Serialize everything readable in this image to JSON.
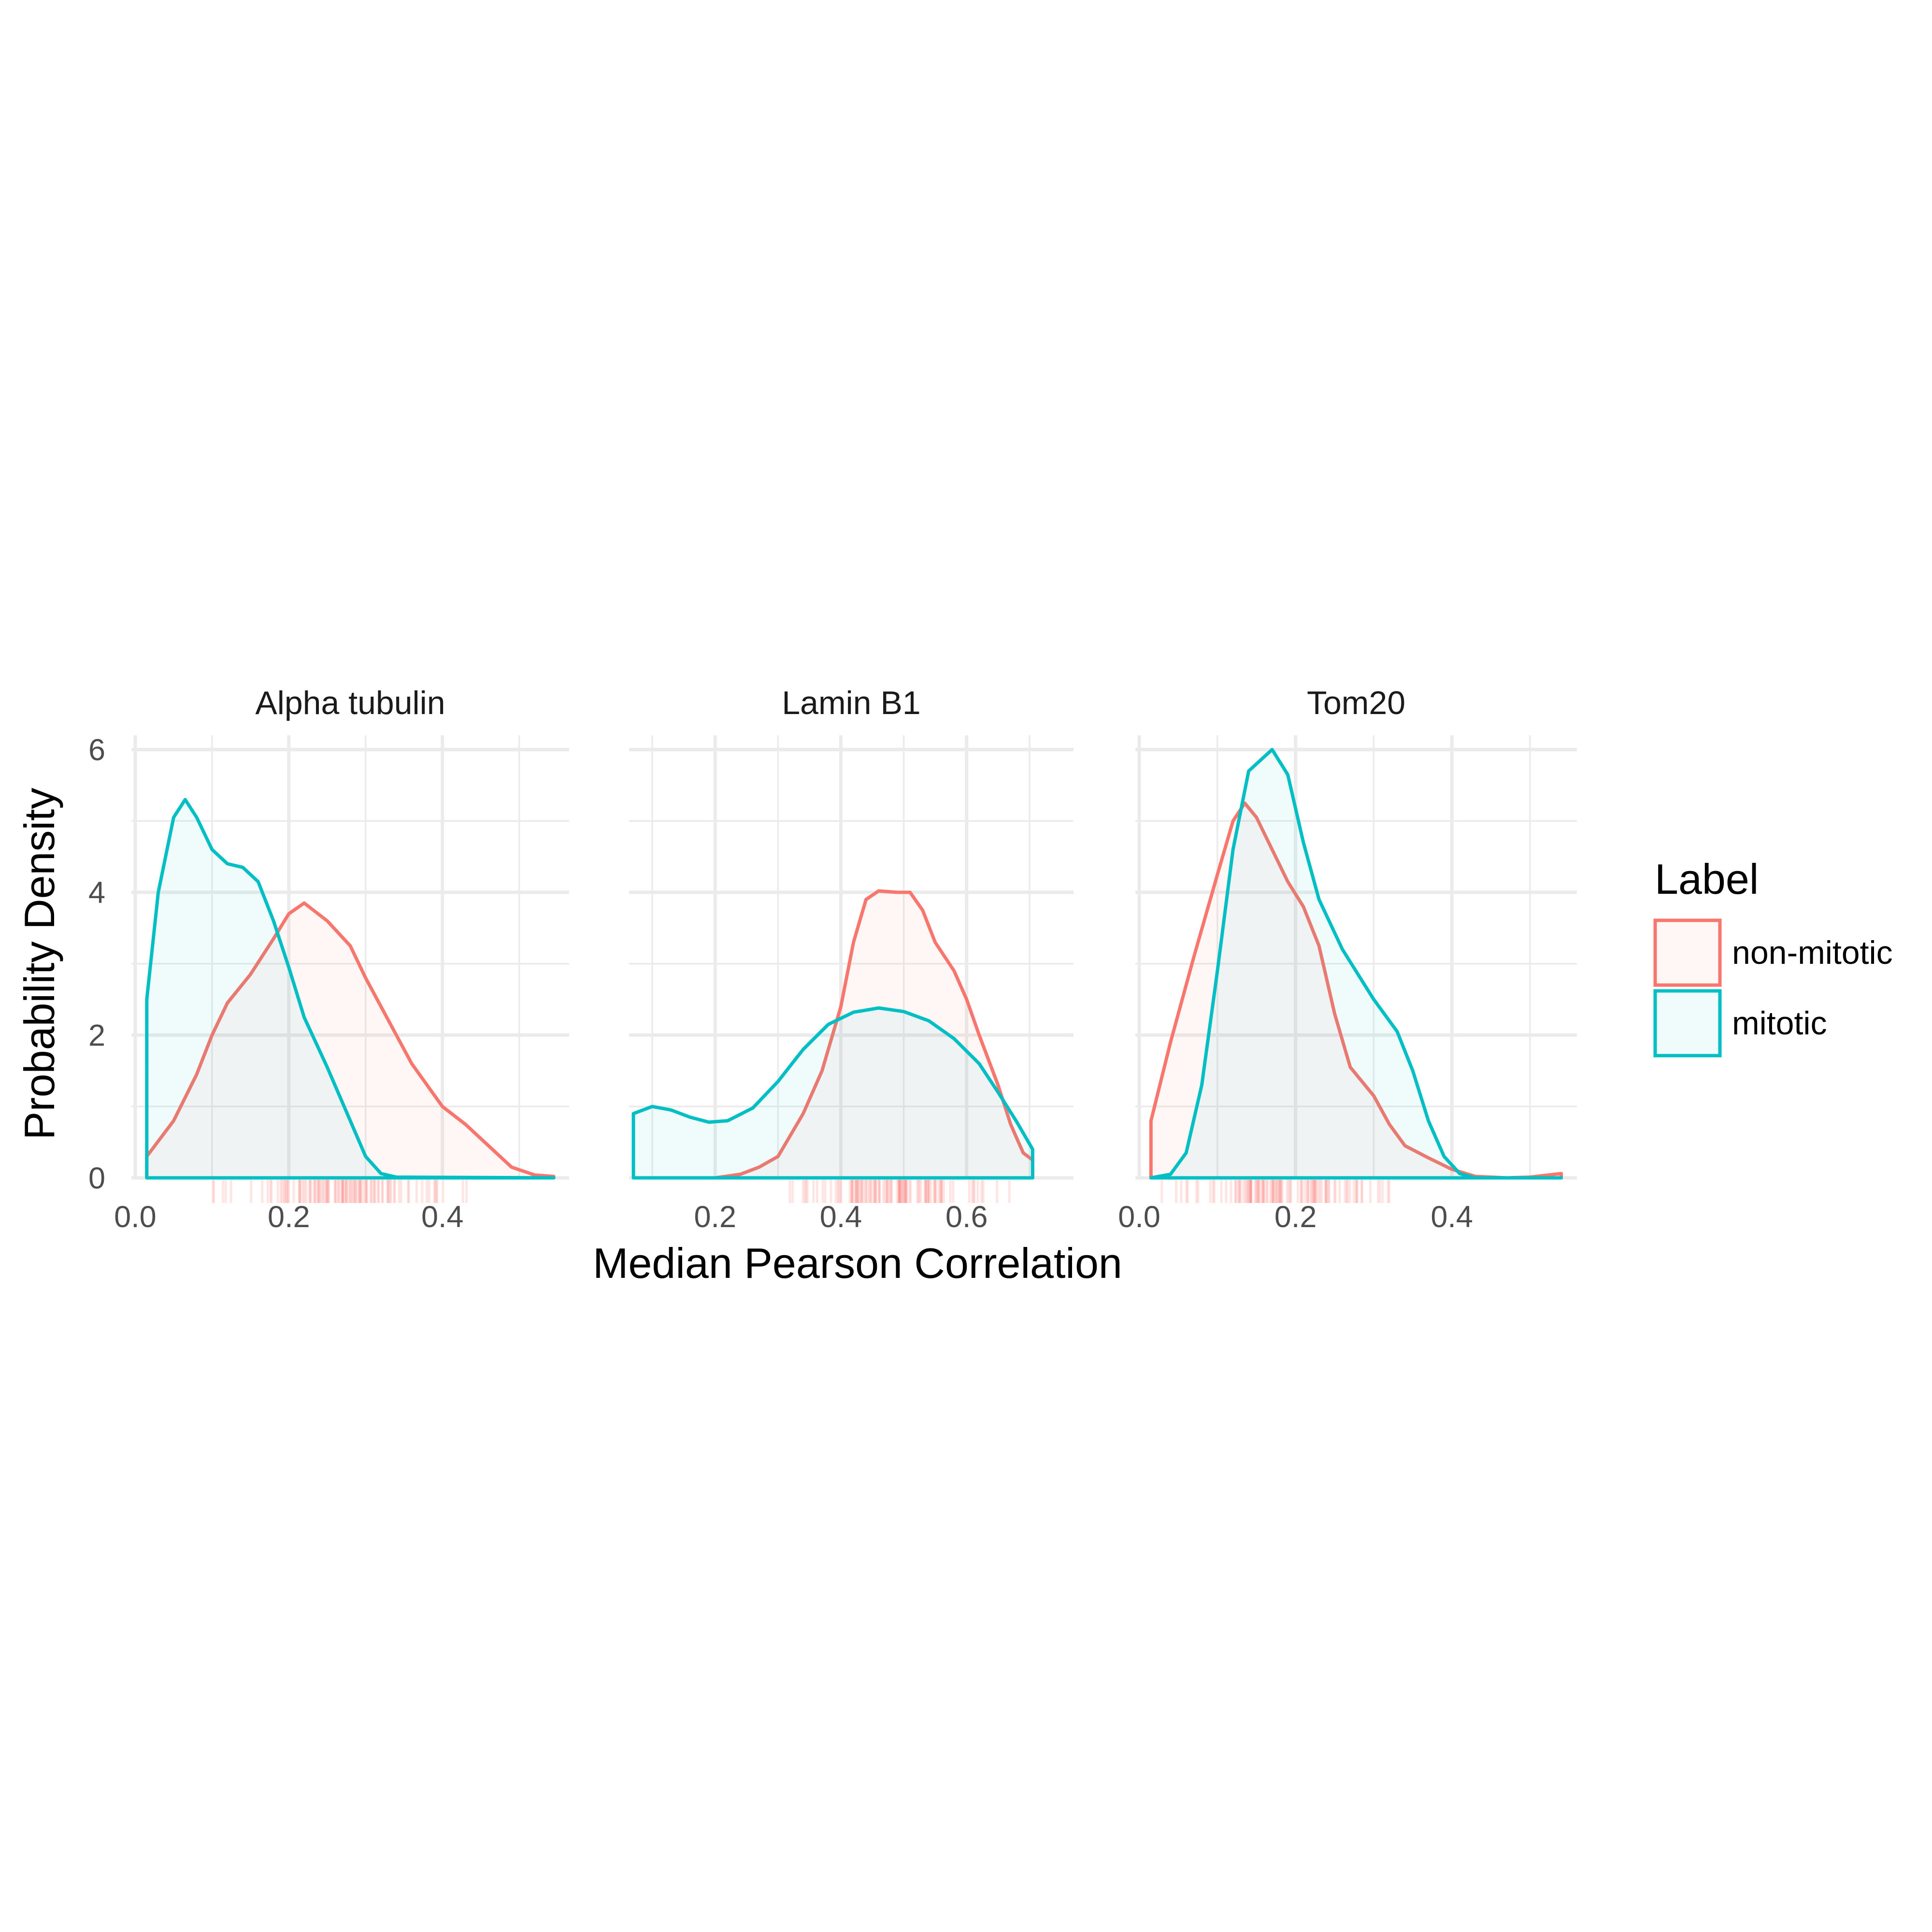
{
  "chart_data": {
    "type": "density",
    "xlabel": "Median Pearson Correlation",
    "ylabel": "Probability Density",
    "legend": {
      "title": "Label",
      "position": "right",
      "entries": [
        {
          "name": "non-mitotic",
          "color": "#F8766D"
        },
        {
          "name": "mitotic",
          "color": "#00BFC4"
        }
      ]
    },
    "grid": true,
    "ylim": [
      0,
      6.2
    ],
    "yticks": [
      0,
      2,
      4,
      6
    ],
    "panels": [
      {
        "title": "Alpha tubulin",
        "xlim": [
          -0.005,
          0.565
        ],
        "xticks": [
          0.0,
          0.2,
          0.4
        ],
        "xtick_labels": [
          "0.0",
          "0.2",
          "0.4"
        ],
        "series": [
          {
            "name": "non-mitotic",
            "color": "#F8766D",
            "points": [
              [
                0.015,
                0.3
              ],
              [
                0.05,
                0.8
              ],
              [
                0.08,
                1.45
              ],
              [
                0.1,
                2.0
              ],
              [
                0.12,
                2.45
              ],
              [
                0.15,
                2.85
              ],
              [
                0.18,
                3.35
              ],
              [
                0.2,
                3.7
              ],
              [
                0.22,
                3.85
              ],
              [
                0.25,
                3.6
              ],
              [
                0.28,
                3.25
              ],
              [
                0.3,
                2.8
              ],
              [
                0.33,
                2.2
              ],
              [
                0.36,
                1.6
              ],
              [
                0.4,
                1.0
              ],
              [
                0.43,
                0.75
              ],
              [
                0.46,
                0.45
              ],
              [
                0.49,
                0.15
              ],
              [
                0.52,
                0.04
              ],
              [
                0.545,
                0.02
              ]
            ]
          },
          {
            "name": "mitotic",
            "color": "#00BFC4",
            "points": [
              [
                0.015,
                2.5
              ],
              [
                0.03,
                4.0
              ],
              [
                0.05,
                5.05
              ],
              [
                0.065,
                5.3
              ],
              [
                0.08,
                5.05
              ],
              [
                0.1,
                4.6
              ],
              [
                0.12,
                4.4
              ],
              [
                0.14,
                4.35
              ],
              [
                0.16,
                4.15
              ],
              [
                0.18,
                3.6
              ],
              [
                0.2,
                2.95
              ],
              [
                0.22,
                2.25
              ],
              [
                0.25,
                1.55
              ],
              [
                0.28,
                0.8
              ],
              [
                0.3,
                0.3
              ],
              [
                0.32,
                0.06
              ],
              [
                0.34,
                0.01
              ],
              [
                0.545,
                0.0
              ]
            ]
          }
        ],
        "rug": {
          "min": 0.03,
          "max": 0.49
        }
      },
      {
        "title": "Lamin B1",
        "xlim": [
          0.063,
          0.77
        ],
        "xticks": [
          0.2,
          0.4,
          0.6
        ],
        "xtick_labels": [
          "0.2",
          "0.4",
          "0.6"
        ],
        "series": [
          {
            "name": "non-mitotic",
            "color": "#F8766D",
            "points": [
              [
                0.2,
                0.0
              ],
              [
                0.24,
                0.05
              ],
              [
                0.27,
                0.15
              ],
              [
                0.3,
                0.3
              ],
              [
                0.34,
                0.9
              ],
              [
                0.37,
                1.5
              ],
              [
                0.4,
                2.4
              ],
              [
                0.42,
                3.3
              ],
              [
                0.44,
                3.9
              ],
              [
                0.46,
                4.02
              ],
              [
                0.49,
                4.0
              ],
              [
                0.51,
                4.0
              ],
              [
                0.53,
                3.75
              ],
              [
                0.55,
                3.3
              ],
              [
                0.58,
                2.9
              ],
              [
                0.6,
                2.5
              ],
              [
                0.62,
                2.0
              ],
              [
                0.65,
                1.3
              ],
              [
                0.67,
                0.75
              ],
              [
                0.69,
                0.35
              ],
              [
                0.705,
                0.25
              ]
            ]
          },
          {
            "name": "mitotic",
            "color": "#00BFC4",
            "points": [
              [
                0.07,
                0.9
              ],
              [
                0.1,
                1.0
              ],
              [
                0.13,
                0.95
              ],
              [
                0.16,
                0.85
              ],
              [
                0.19,
                0.78
              ],
              [
                0.22,
                0.8
              ],
              [
                0.26,
                0.98
              ],
              [
                0.3,
                1.35
              ],
              [
                0.34,
                1.8
              ],
              [
                0.38,
                2.15
              ],
              [
                0.42,
                2.32
              ],
              [
                0.46,
                2.38
              ],
              [
                0.5,
                2.33
              ],
              [
                0.54,
                2.2
              ],
              [
                0.58,
                1.95
              ],
              [
                0.62,
                1.6
              ],
              [
                0.65,
                1.2
              ],
              [
                0.68,
                0.78
              ],
              [
                0.705,
                0.4
              ]
            ]
          }
        ],
        "rug": {
          "min": 0.27,
          "max": 0.69
        }
      },
      {
        "title": "Tom20",
        "xlim": [
          -0.005,
          0.56
        ],
        "xticks": [
          0.0,
          0.2,
          0.4
        ],
        "xtick_labels": [
          "0.0",
          "0.2",
          "0.4"
        ],
        "series": [
          {
            "name": "non-mitotic",
            "color": "#F8766D",
            "points": [
              [
                0.015,
                0.8
              ],
              [
                0.04,
                1.9
              ],
              [
                0.07,
                3.1
              ],
              [
                0.1,
                4.25
              ],
              [
                0.12,
                5.0
              ],
              [
                0.135,
                5.25
              ],
              [
                0.15,
                5.05
              ],
              [
                0.17,
                4.6
              ],
              [
                0.19,
                4.15
              ],
              [
                0.21,
                3.8
              ],
              [
                0.23,
                3.25
              ],
              [
                0.25,
                2.3
              ],
              [
                0.27,
                1.55
              ],
              [
                0.3,
                1.15
              ],
              [
                0.32,
                0.75
              ],
              [
                0.34,
                0.45
              ],
              [
                0.37,
                0.28
              ],
              [
                0.4,
                0.12
              ],
              [
                0.43,
                0.02
              ],
              [
                0.47,
                0.0
              ],
              [
                0.5,
                0.01
              ],
              [
                0.54,
                0.06
              ]
            ]
          },
          {
            "name": "mitotic",
            "color": "#00BFC4",
            "points": [
              [
                0.015,
                0.0
              ],
              [
                0.04,
                0.05
              ],
              [
                0.06,
                0.35
              ],
              [
                0.08,
                1.3
              ],
              [
                0.1,
                2.9
              ],
              [
                0.12,
                4.6
              ],
              [
                0.14,
                5.7
              ],
              [
                0.17,
                6.0
              ],
              [
                0.19,
                5.65
              ],
              [
                0.21,
                4.7
              ],
              [
                0.23,
                3.9
              ],
              [
                0.26,
                3.2
              ],
              [
                0.28,
                2.85
              ],
              [
                0.3,
                2.5
              ],
              [
                0.33,
                2.05
              ],
              [
                0.35,
                1.5
              ],
              [
                0.37,
                0.8
              ],
              [
                0.39,
                0.3
              ],
              [
                0.41,
                0.06
              ],
              [
                0.43,
                0.0
              ],
              [
                0.54,
                0.0
              ]
            ]
          }
        ],
        "rug": {
          "min": 0.02,
          "max": 0.36
        }
      }
    ]
  }
}
